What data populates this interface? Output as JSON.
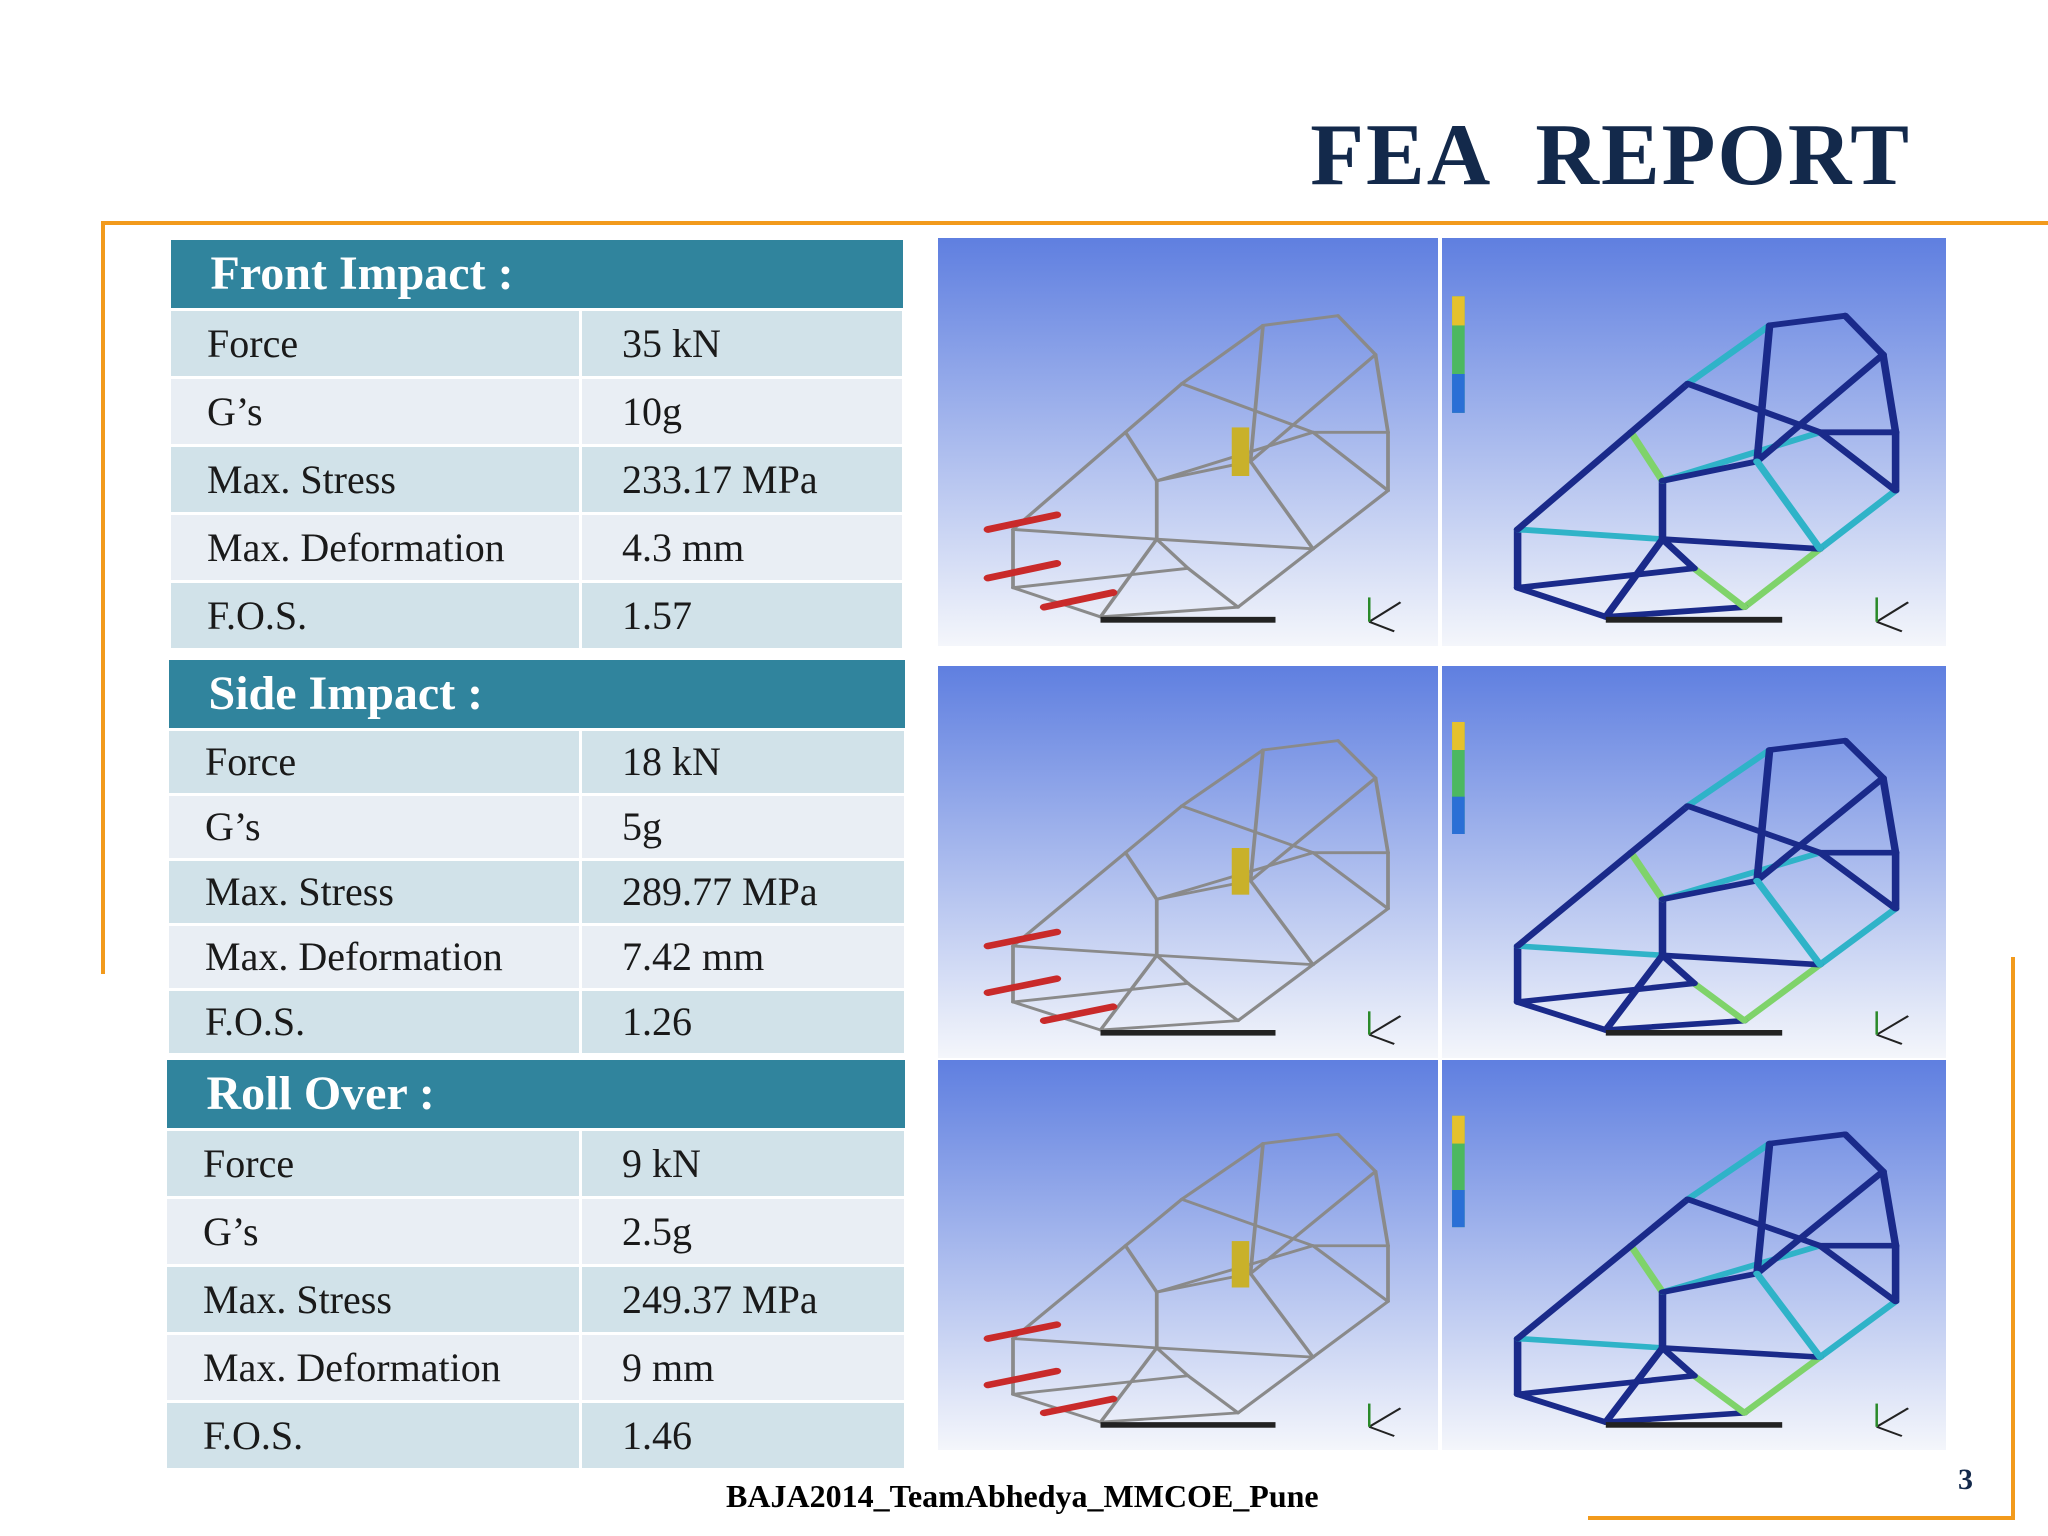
{
  "slide": {
    "title": "FEA  REPORT",
    "footer": "BAJA2014_TeamAbhedya_MMCOE_Pune",
    "page_number": "3",
    "colors": {
      "accent_orange": "#f29a1c",
      "header_teal": "#30849d",
      "title_navy": "#13294b",
      "row_light": "#d1e2e9",
      "row_lighter": "#e9eef4"
    }
  },
  "tables": [
    {
      "heading": "Front Impact :",
      "rows": [
        {
          "label": "Force",
          "value": "35 kN"
        },
        {
          "label": "G’s",
          "value": "10g"
        },
        {
          "label": "Max. Stress",
          "value": "233.17 MPa"
        },
        {
          "label": "Max. Deformation",
          "value": "4.3 mm"
        },
        {
          "label": "F.O.S.",
          "value": "1.57"
        }
      ]
    },
    {
      "heading": "Side Impact :",
      "rows": [
        {
          "label": "Force",
          "value": "18 kN"
        },
        {
          "label": "G’s",
          "value": "5g"
        },
        {
          "label": "Max. Stress",
          "value": "289.77 MPa"
        },
        {
          "label": "Max. Deformation",
          "value": "7.42 mm"
        },
        {
          "label": "F.O.S.",
          "value": "1.26"
        }
      ]
    },
    {
      "heading": "Roll Over :",
      "rows": [
        {
          "label": "Force",
          "value": "9 kN"
        },
        {
          "label": "G’s",
          "value": "2.5g"
        },
        {
          "label": "Max. Stress",
          "value": "249.37 MPa"
        },
        {
          "label": "Max. Deformation",
          "value": "9 mm"
        },
        {
          "label": "F.O.S.",
          "value": "1.46"
        }
      ]
    }
  ],
  "images": [
    {
      "name": "front-impact-loads-image",
      "kind": "loads",
      "icon": "frame-with-arrows"
    },
    {
      "name": "front-impact-stress-image",
      "kind": "stress",
      "icon": "stress-contour-frame"
    },
    {
      "name": "side-impact-loads-image",
      "kind": "loads",
      "icon": "frame-with-arrows"
    },
    {
      "name": "side-impact-stress-image",
      "kind": "stress",
      "icon": "stress-contour-frame"
    },
    {
      "name": "roll-over-loads-image",
      "kind": "loads",
      "icon": "frame-with-arrows"
    },
    {
      "name": "roll-over-stress-image",
      "kind": "stress",
      "icon": "stress-contour-frame"
    }
  ]
}
